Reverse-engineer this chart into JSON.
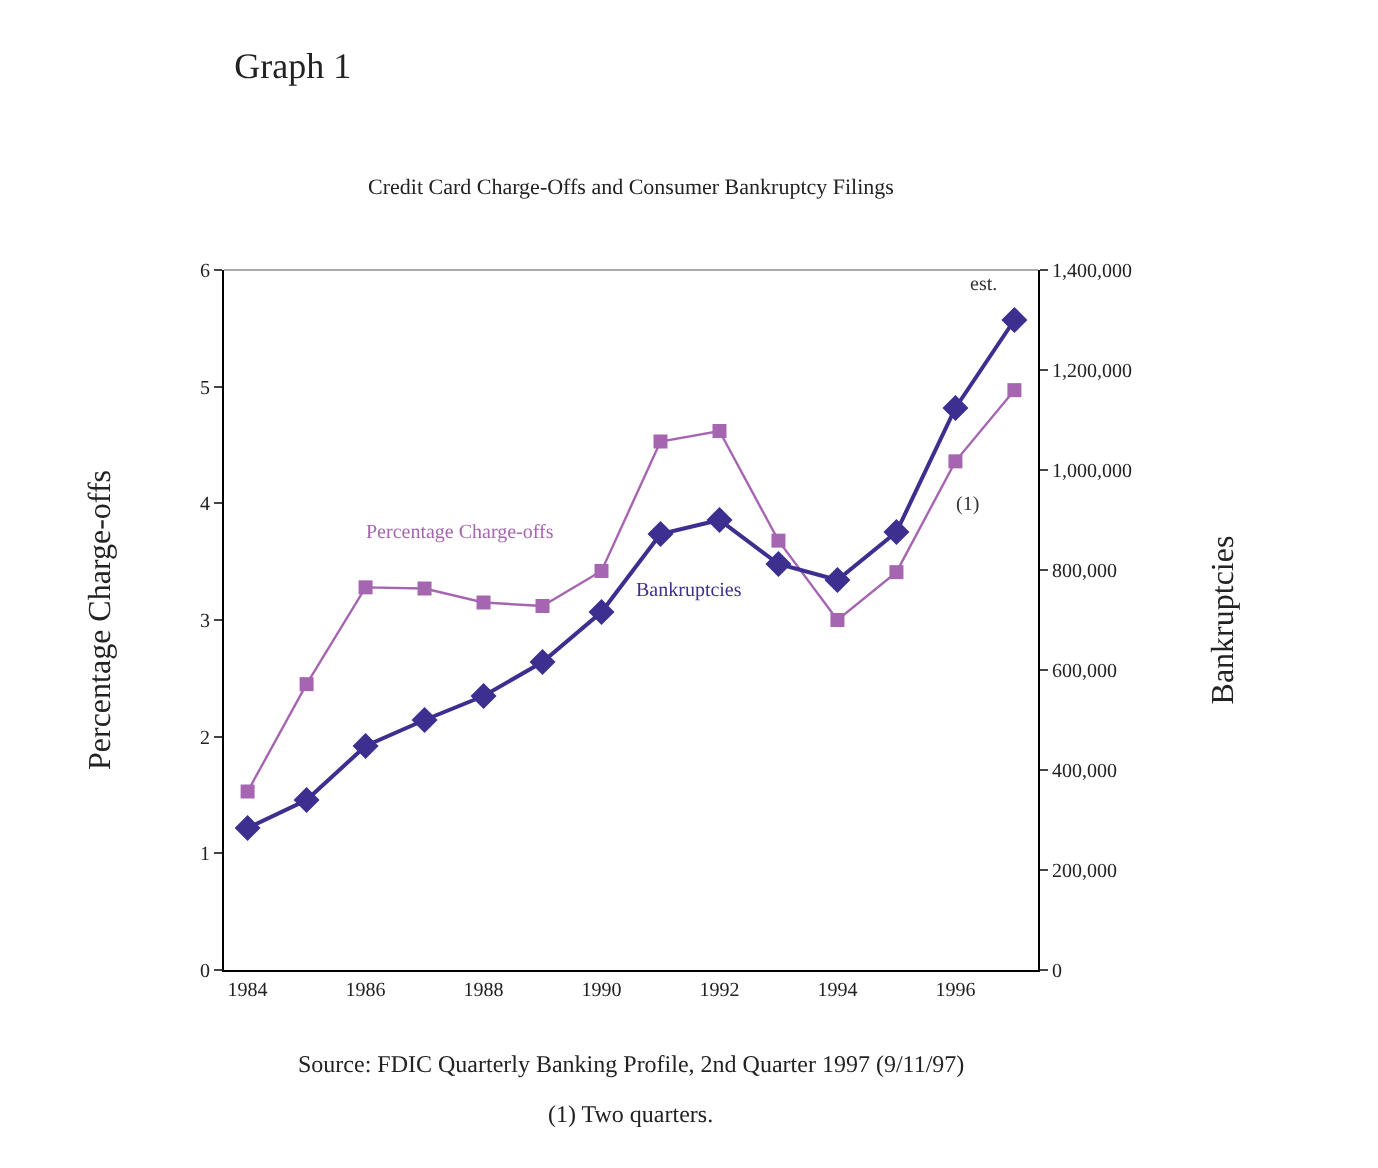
{
  "chart_data": {
    "type": "line",
    "title": "Graph 1",
    "subtitle": "Credit Card Charge-Offs and Consumer Bankruptcy Filings",
    "ylabel": "Percentage Charge-offs",
    "y2label": "Bankruptcies",
    "categories": [
      "1984",
      null,
      "1986",
      null,
      "1988",
      null,
      "1990",
      null,
      "1992",
      null,
      "1994",
      null,
      "1996",
      null
    ],
    "series": [
      {
        "name": "Percentage Charge-offs",
        "color": "#a665b0",
        "marker": "square",
        "values": [
          1.53,
          2.45,
          3.28,
          3.27,
          3.15,
          3.12,
          3.42,
          4.53,
          4.62,
          3.68,
          3.0,
          3.41,
          4.36,
          4.97
        ]
      },
      {
        "name": "Bankruptcies",
        "color": "#3d2f8f",
        "marker": "diamond",
        "axis": "y2",
        "values": [
          284000,
          340000,
          448000,
          500000,
          548000,
          616000,
          716000,
          872000,
          900000,
          812000,
          780000,
          876000,
          1124000,
          1300000
        ]
      }
    ],
    "ylim": [
      0,
      6
    ],
    "yticks": [
      0,
      1,
      2,
      3,
      4,
      5,
      6
    ],
    "y2lim": [
      0,
      1400000
    ],
    "y2ticks": [
      {
        "value": 0,
        "label": "0"
      },
      {
        "value": 200000,
        "label": "200,000"
      },
      {
        "value": 400000,
        "label": "400,000"
      },
      {
        "value": 600000,
        "label": "600,000"
      },
      {
        "value": 800000,
        "label": "800,000"
      },
      {
        "value": 1000000,
        "label": "1,000,000"
      },
      {
        "value": 1200000,
        "label": "1,200,000"
      },
      {
        "value": 1400000,
        "label": "1,400,000"
      }
    ],
    "grid": false,
    "legend": false,
    "annotations": [
      "est.",
      {
        "text": "(1)",
        "x": "1996",
        "y": 4.36
      },
      "Source: FDIC Quarterly Banking Profile, 2nd Quarter 1997 (9/11/97)",
      "(1) Two quarters."
    ]
  }
}
